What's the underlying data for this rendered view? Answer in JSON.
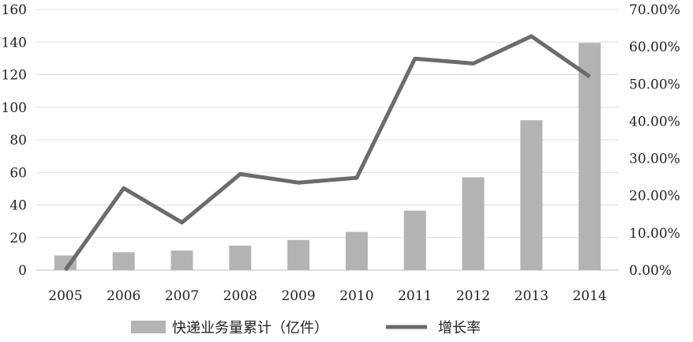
{
  "chart_data": {
    "type": "bar+line",
    "categories": [
      "2005",
      "2006",
      "2007",
      "2008",
      "2009",
      "2010",
      "2011",
      "2012",
      "2013",
      "2014"
    ],
    "series": [
      {
        "name": "快递业务量累计（亿件）",
        "type": "bar",
        "axis": "left",
        "color": "#b3b3b3",
        "values": [
          9,
          11,
          12,
          15,
          18.5,
          23.5,
          36.5,
          57,
          92,
          139.5
        ]
      },
      {
        "name": "增长率",
        "type": "line",
        "axis": "right",
        "color": "#6b6b6b",
        "values": [
          0.0,
          22.0,
          12.8,
          25.8,
          23.5,
          24.8,
          56.8,
          55.5,
          62.8,
          52.0
        ]
      }
    ],
    "y_left": {
      "min": 0,
      "max": 160,
      "ticks": [
        "0",
        "20",
        "40",
        "60",
        "80",
        "100",
        "120",
        "140",
        "160"
      ]
    },
    "y_right": {
      "min": 0,
      "max": 70,
      "ticks": [
        "0.00%",
        "10.00%",
        "20.00%",
        "30.00%",
        "40.00%",
        "50.00%",
        "60.00%",
        "70.00%"
      ]
    },
    "grid": true,
    "legend_position": "bottom-center",
    "title": "",
    "xlabel": "",
    "ylabel": ""
  }
}
